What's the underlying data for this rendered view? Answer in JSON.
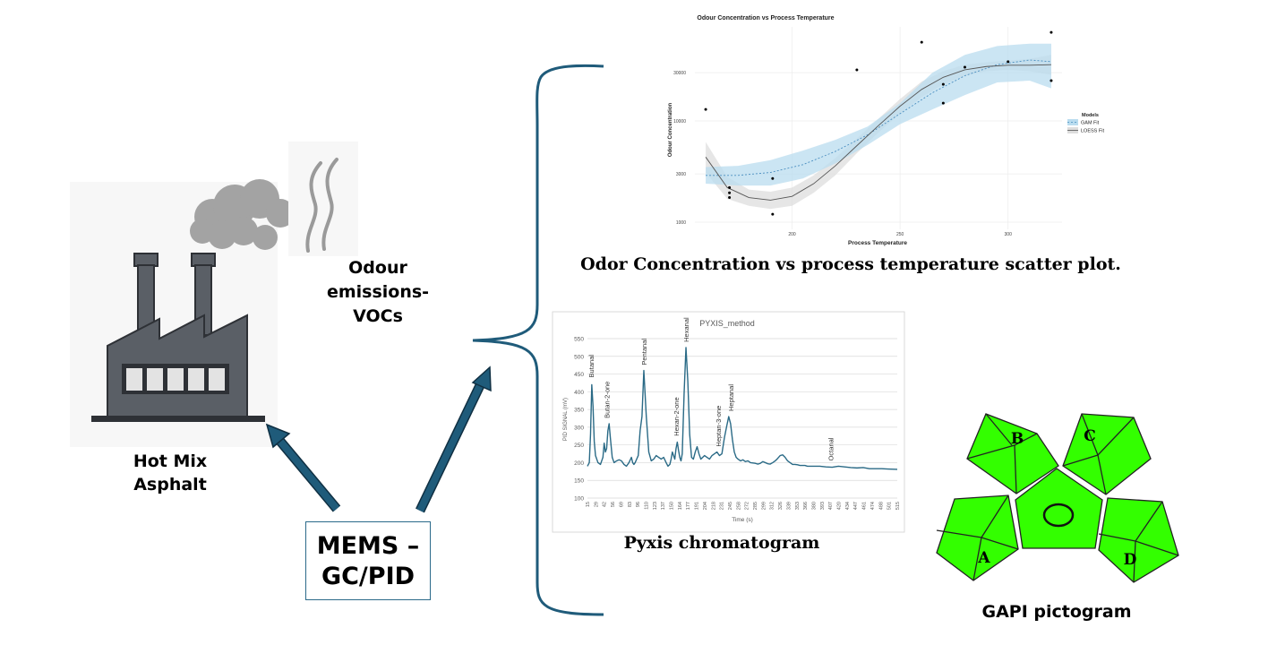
{
  "labels": {
    "odour_line1": "Odour",
    "odour_line2": "emissions-",
    "odour_line3": "VOCs",
    "hma_line1": "Hot Mix",
    "hma_line2": "Asphalt",
    "mems_line1": "MEMS –",
    "mems_line2": "GC/PID",
    "scatter_caption": "Odor Concentration vs process temperature scatter plot.",
    "pyxis_caption": "Pyxis chromatogram",
    "gapi_caption": "GAPI pictogram"
  },
  "colors": {
    "arrow": "#1f5b7a",
    "gapi_green": "#33ff00",
    "factory": "#5a5f66",
    "smoke": "#a3a3a3",
    "chrom_line": "#2a6a86",
    "gam_band": "#b9dcef",
    "gam_line": "#4a8ec0",
    "loess_band": "#dddddd",
    "loess_line": "#555555"
  },
  "gapi": {
    "labels": [
      "B",
      "C",
      "A",
      "D"
    ]
  },
  "chart_data": [
    {
      "type": "scatter",
      "title": "Odour Concentration vs Process Temperature",
      "xlabel": "Process Temperature",
      "ylabel": "Odour Concentration",
      "log_y": true,
      "xlim": [
        155,
        325
      ],
      "ylim": [
        850,
        85000
      ],
      "xticks": [
        200,
        250,
        300
      ],
      "yticks": [
        1000,
        3000,
        10000,
        30000
      ],
      "ytick_labels": [
        "1000",
        "3000",
        "10000",
        "30000"
      ],
      "legend": {
        "title": "Models",
        "entries": [
          "GAM Fit",
          "LOESS Fit"
        ],
        "position": "right"
      },
      "points": [
        {
          "x": 160,
          "y": 13000
        },
        {
          "x": 171,
          "y": 2200
        },
        {
          "x": 171,
          "y": 1950
        },
        {
          "x": 171,
          "y": 1750
        },
        {
          "x": 191,
          "y": 2700
        },
        {
          "x": 191,
          "y": 1200
        },
        {
          "x": 230,
          "y": 32000
        },
        {
          "x": 260,
          "y": 60000
        },
        {
          "x": 270,
          "y": 23000
        },
        {
          "x": 270,
          "y": 15000
        },
        {
          "x": 280,
          "y": 34000
        },
        {
          "x": 300,
          "y": 38500
        },
        {
          "x": 320,
          "y": 75000
        },
        {
          "x": 320,
          "y": 25000
        }
      ],
      "series": [
        {
          "name": "GAM Fit",
          "x": [
            160,
            175,
            190,
            205,
            220,
            235,
            250,
            265,
            280,
            295,
            310,
            320
          ],
          "y": [
            2900,
            2900,
            3100,
            3700,
            5000,
            7300,
            11800,
            19000,
            28000,
            36000,
            40000,
            38500
          ],
          "upper": [
            3500,
            3600,
            4100,
            5100,
            6500,
            8800,
            15000,
            30000,
            45000,
            55000,
            58000,
            58000
          ],
          "lower": [
            2400,
            2300,
            2300,
            2700,
            3800,
            5800,
            9300,
            13000,
            18000,
            24000,
            25000,
            21000
          ]
        },
        {
          "name": "LOESS Fit",
          "x": [
            160,
            170,
            180,
            190,
            200,
            210,
            220,
            230,
            240,
            250,
            260,
            270,
            280,
            290,
            300,
            310,
            320
          ],
          "y": [
            4400,
            2200,
            1750,
            1650,
            1800,
            2400,
            3600,
            5700,
            9000,
            14000,
            20500,
            27000,
            32000,
            34500,
            35500,
            35500,
            36000
          ],
          "upper": [
            6200,
            2800,
            2100,
            2000,
            2200,
            2900,
            4300,
            6700,
            10500,
            16500,
            24500,
            31000,
            36000,
            38000,
            39500,
            41000,
            45000
          ],
          "lower": [
            3100,
            1700,
            1450,
            1350,
            1450,
            1950,
            2900,
            4800,
            7700,
            11800,
            17200,
            23000,
            28000,
            31000,
            32000,
            31000,
            28500
          ]
        }
      ]
    },
    {
      "type": "line",
      "title": "PYXIS_method",
      "xlabel": "Time (s)",
      "ylabel": "PID SIGNAL (mV)",
      "ylim": [
        100,
        550
      ],
      "yticks": [
        100,
        150,
        200,
        250,
        300,
        350,
        400,
        450,
        500,
        550
      ],
      "x_tick_labels": [
        "15",
        "29",
        "42",
        "56",
        "69",
        "83",
        "96",
        "110",
        "123",
        "137",
        "150",
        "164",
        "177",
        "191",
        "204",
        "218",
        "231",
        "245",
        "258",
        "272",
        "285",
        "299",
        "312",
        "326",
        "339",
        "353",
        "366",
        "380",
        "393",
        "407",
        "420",
        "434",
        "447",
        "461",
        "474",
        "488",
        "501",
        "515"
      ],
      "xlim": [
        15,
        515
      ],
      "x": [
        15,
        18,
        20,
        22,
        24,
        26,
        28,
        32,
        36,
        40,
        42,
        44,
        46,
        48,
        50,
        52,
        55,
        58,
        62,
        66,
        70,
        74,
        78,
        82,
        86,
        88,
        90,
        92,
        94,
        97,
        100,
        103,
        106,
        110,
        114,
        118,
        122,
        126,
        130,
        134,
        138,
        142,
        145,
        148,
        150,
        152,
        154,
        156,
        158,
        160,
        162,
        164,
        166,
        168,
        171,
        174,
        177,
        180,
        183,
        186,
        189,
        192,
        195,
        198,
        201,
        204,
        208,
        212,
        216,
        220,
        224,
        228,
        232,
        236,
        240,
        243,
        246,
        249,
        252,
        255,
        258,
        262,
        266,
        270,
        274,
        278,
        282,
        286,
        290,
        294,
        298,
        302,
        306,
        310,
        314,
        318,
        322,
        326,
        330,
        334,
        338,
        342,
        346,
        350,
        354,
        358,
        362,
        366,
        370,
        380,
        390,
        400,
        410,
        420,
        430,
        440,
        450,
        460,
        470,
        480,
        490,
        500,
        515
      ],
      "y": [
        190,
        200,
        280,
        420,
        360,
        260,
        220,
        200,
        195,
        215,
        255,
        230,
        240,
        290,
        310,
        270,
        215,
        200,
        205,
        208,
        205,
        195,
        190,
        200,
        215,
        200,
        195,
        200,
        208,
        220,
        290,
        330,
        460,
        330,
        230,
        205,
        210,
        220,
        215,
        210,
        215,
        200,
        190,
        195,
        210,
        230,
        220,
        210,
        240,
        258,
        235,
        215,
        205,
        225,
        395,
        525,
        430,
        280,
        215,
        210,
        230,
        245,
        225,
        210,
        215,
        220,
        215,
        210,
        220,
        225,
        230,
        220,
        225,
        270,
        305,
        330,
        310,
        265,
        230,
        215,
        210,
        205,
        208,
        203,
        205,
        200,
        199,
        198,
        196,
        198,
        203,
        200,
        197,
        196,
        200,
        205,
        212,
        220,
        222,
        215,
        205,
        200,
        195,
        195,
        194,
        192,
        192,
        192,
        190,
        190,
        190,
        188,
        187,
        190,
        188,
        186,
        185,
        186,
        183,
        183,
        183,
        182,
        181
      ],
      "annotations": [
        {
          "label": "Butanal",
          "x": 21,
          "y": 425
        },
        {
          "label": "Butan-2-one",
          "x": 46,
          "y": 310
        },
        {
          "label": "Pentanal",
          "x": 106,
          "y": 460
        },
        {
          "label": "Hexan-2-one",
          "x": 158,
          "y": 260
        },
        {
          "label": "Hexanal",
          "x": 174,
          "y": 525
        },
        {
          "label": "Heptan-3-one",
          "x": 226,
          "y": 230
        },
        {
          "label": "Heptanal",
          "x": 246,
          "y": 330
        },
        {
          "label": "Octanal",
          "x": 407,
          "y": 190
        }
      ]
    }
  ]
}
